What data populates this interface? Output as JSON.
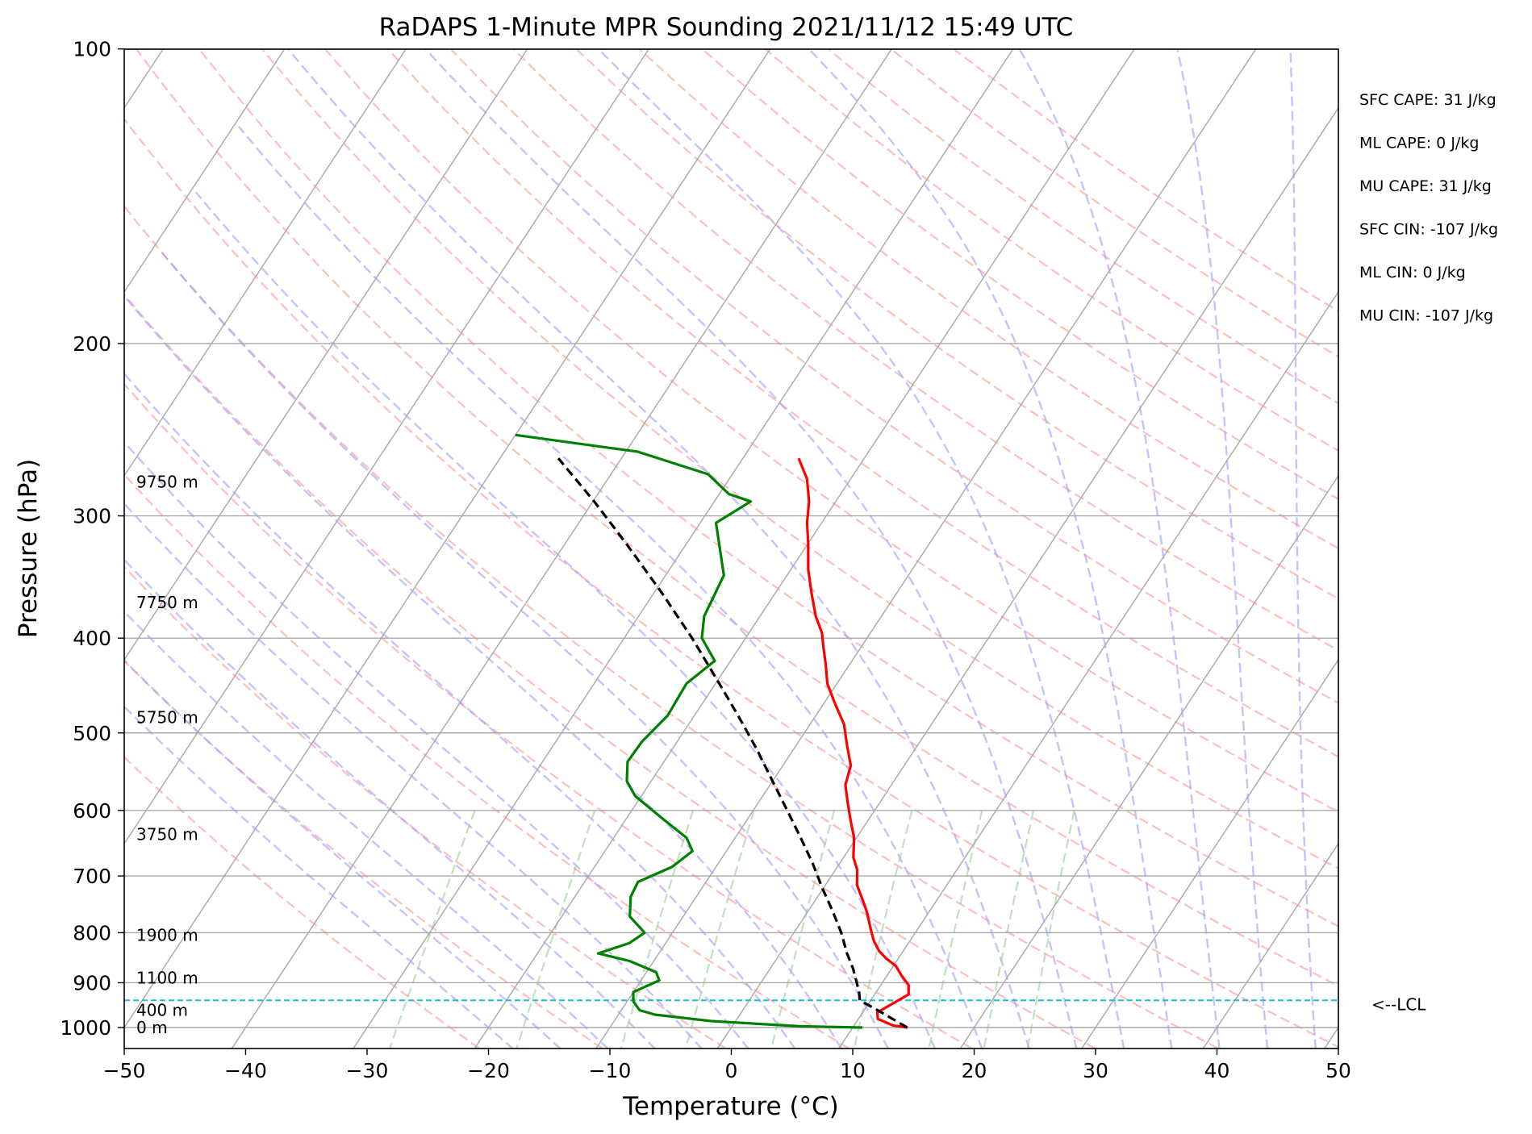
{
  "chart_data": {
    "type": "line",
    "title": "RaDAPS 1-Minute MPR Sounding 2021/11/12 15:49 UTC",
    "xlabel": "Temperature (°C)",
    "ylabel": "Pressure (hPa)",
    "xlim": [
      -50,
      50
    ],
    "ylim": [
      1050,
      100
    ],
    "y_scale": "log",
    "x_ticks": [
      -50,
      -40,
      -30,
      -20,
      -10,
      0,
      10,
      20,
      30,
      40,
      50
    ],
    "x_tick_labels": [
      "−50",
      "−40",
      "−30",
      "−20",
      "−10",
      "0",
      "10",
      "20",
      "30",
      "40",
      "50"
    ],
    "y_ticks": [
      100,
      200,
      300,
      400,
      500,
      600,
      700,
      800,
      900,
      1000
    ],
    "y_tick_labels": [
      "100",
      "200",
      "300",
      "400",
      "500",
      "600",
      "700",
      "800",
      "900",
      "1000"
    ],
    "grid": true,
    "colors": {
      "temperature": "#ff0000",
      "dewpoint": "#008000",
      "parcel": "#000000",
      "lcl_line": "#17becf",
      "dry_adiabat": "#ff9b9b",
      "moist_adiabat": "#9b9bff",
      "mixing_ratio": "#9bd29b",
      "isotherm": "#a8a8a8"
    },
    "series": [
      {
        "name": "",
        "key": "temperature",
        "points": [
          [
            1000,
            14.5
          ],
          [
            995,
            13.2
          ],
          [
            980,
            11.6
          ],
          [
            965,
            11.2
          ],
          [
            950,
            11.8
          ],
          [
            940,
            12.2
          ],
          [
            925,
            12.8
          ],
          [
            905,
            12.3
          ],
          [
            885,
            11.2
          ],
          [
            865,
            10.2
          ],
          [
            850,
            9.0
          ],
          [
            835,
            8.0
          ],
          [
            815,
            7.0
          ],
          [
            790,
            6.0
          ],
          [
            760,
            4.8
          ],
          [
            735,
            3.6
          ],
          [
            715,
            2.6
          ],
          [
            690,
            1.8
          ],
          [
            670,
            0.8
          ],
          [
            640,
            -0.2
          ],
          [
            615,
            -1.4
          ],
          [
            590,
            -2.6
          ],
          [
            565,
            -3.8
          ],
          [
            540,
            -4.4
          ],
          [
            515,
            -5.8
          ],
          [
            490,
            -7.2
          ],
          [
            465,
            -9.2
          ],
          [
            445,
            -10.8
          ],
          [
            425,
            -12.0
          ],
          [
            410,
            -13.0
          ],
          [
            395,
            -14.0
          ],
          [
            380,
            -15.4
          ],
          [
            360,
            -17.0
          ],
          [
            340,
            -18.6
          ],
          [
            320,
            -20.0
          ],
          [
            305,
            -21.2
          ],
          [
            290,
            -22.2
          ],
          [
            275,
            -23.6
          ],
          [
            262,
            -25.4
          ]
        ]
      },
      {
        "name": "",
        "key": "dewpoint",
        "points": [
          [
            1000,
            10.8
          ],
          [
            997,
            5.5
          ],
          [
            985,
            -2.0
          ],
          [
            970,
            -7.0
          ],
          [
            960,
            -8.5
          ],
          [
            940,
            -9.5
          ],
          [
            920,
            -10.0
          ],
          [
            895,
            -8.5
          ],
          [
            878,
            -9.2
          ],
          [
            855,
            -12.0
          ],
          [
            840,
            -15.0
          ],
          [
            820,
            -13.0
          ],
          [
            800,
            -12.3
          ],
          [
            770,
            -14.4
          ],
          [
            735,
            -15.4
          ],
          [
            710,
            -15.6
          ],
          [
            685,
            -13.6
          ],
          [
            660,
            -12.8
          ],
          [
            640,
            -14.0
          ],
          [
            610,
            -17.2
          ],
          [
            580,
            -20.5
          ],
          [
            560,
            -22.0
          ],
          [
            535,
            -23.0
          ],
          [
            510,
            -22.9
          ],
          [
            480,
            -22.2
          ],
          [
            445,
            -22.4
          ],
          [
            422,
            -21.3
          ],
          [
            400,
            -23.6
          ],
          [
            380,
            -24.6
          ],
          [
            345,
            -25.2
          ],
          [
            305,
            -28.7
          ],
          [
            290,
            -27.0
          ],
          [
            285,
            -29.2
          ],
          [
            272,
            -32.0
          ],
          [
            258,
            -39.0
          ],
          [
            248,
            -50.0
          ]
        ]
      },
      {
        "name": "",
        "key": "parcel",
        "points": [
          [
            1000,
            14.5
          ],
          [
            960,
            11.1
          ],
          [
            938,
            9.1
          ],
          [
            920,
            8.6
          ],
          [
            900,
            7.9
          ],
          [
            870,
            6.8
          ],
          [
            840,
            5.5
          ],
          [
            800,
            3.9
          ],
          [
            760,
            2.0
          ],
          [
            720,
            -0.1
          ],
          [
            680,
            -2.2
          ],
          [
            640,
            -4.6
          ],
          [
            600,
            -7.2
          ],
          [
            560,
            -10.0
          ],
          [
            520,
            -13.0
          ],
          [
            480,
            -16.4
          ],
          [
            440,
            -20.2
          ],
          [
            400,
            -24.4
          ],
          [
            360,
            -29.3
          ],
          [
            320,
            -35.0
          ],
          [
            290,
            -39.9
          ],
          [
            262,
            -45.2
          ]
        ]
      }
    ],
    "lcl_pressure": 938,
    "lcl_label": "<--LCL",
    "height_labels": [
      {
        "pressure": 1000,
        "text": "0 m"
      },
      {
        "pressure": 960,
        "text": "400 m"
      },
      {
        "pressure": 890,
        "text": "1100 m"
      },
      {
        "pressure": 805,
        "text": "1900 m"
      },
      {
        "pressure": 635,
        "text": "3750 m"
      },
      {
        "pressure": 482,
        "text": "5750 m"
      },
      {
        "pressure": 368,
        "text": "7750 m"
      },
      {
        "pressure": 277,
        "text": "9750 m"
      }
    ],
    "stats": [
      "SFC CAPE: 31 J/kg",
      "ML CAPE: 0 J/kg",
      "MU CAPE: 31 J/kg",
      "SFC CIN: -107 J/kg",
      "ML CIN: 0 J/kg",
      "MU CIN: -107 J/kg"
    ]
  }
}
